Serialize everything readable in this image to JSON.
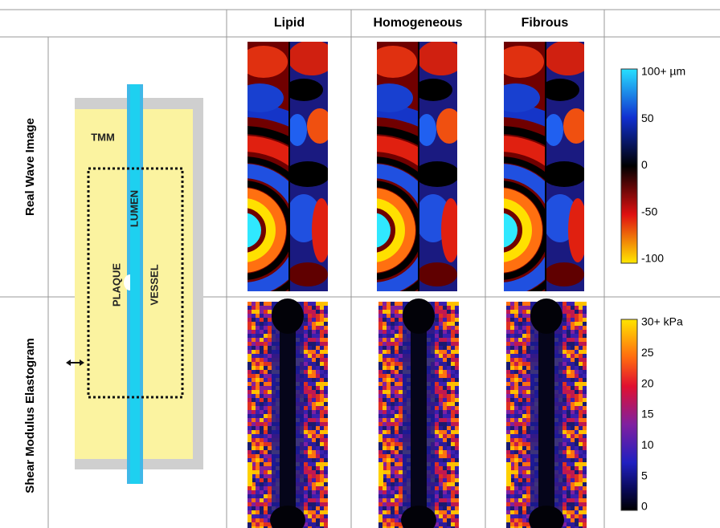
{
  "header": {
    "columns": [
      "Lipid",
      "Homogeneous",
      "Fibrous"
    ]
  },
  "rows": [
    {
      "label": "Real Wave Image",
      "colorbar": {
        "labels": [
          "100+ µm",
          "50",
          "0",
          "-50",
          "-100"
        ]
      }
    },
    {
      "label": "Shear Modulus Elastogram",
      "colorbar": {
        "labels": [
          "30+ kPa",
          "25",
          "20",
          "15",
          "10",
          "5",
          "0"
        ]
      }
    }
  ],
  "diagram": {
    "labels": [
      "TMM",
      "LUMEN",
      "PLAQUE",
      "VESSEL"
    ]
  }
}
